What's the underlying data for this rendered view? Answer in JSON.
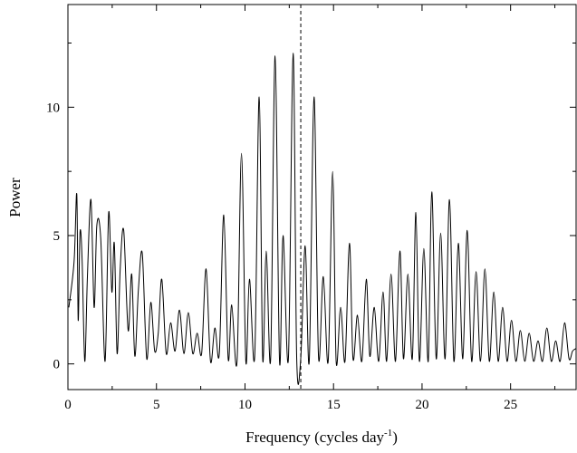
{
  "chart_data": {
    "type": "line",
    "xlabel": "Frequency (cycles day",
    "xlabel_superscript": "-1",
    "xlabel_suffix": ")",
    "ylabel": "Power",
    "xlim": [
      0,
      28.7
    ],
    "ylim": [
      -1.0,
      14.0
    ],
    "xticks": [
      0,
      5,
      10,
      15,
      20,
      25
    ],
    "yticks": [
      0,
      5,
      10
    ],
    "marker_line_x": 13.15,
    "series": [
      {
        "x": [
          0.05,
          0.35,
          0.5,
          0.58,
          0.68,
          0.8,
          0.95,
          1.1,
          1.3,
          1.48,
          1.63,
          1.85,
          2.1,
          2.3,
          2.48,
          2.62,
          2.78,
          2.95,
          3.15,
          3.4,
          3.6,
          3.78,
          3.98,
          4.2,
          4.45,
          4.68,
          4.9,
          5.1,
          5.3,
          5.55,
          5.8,
          6.05,
          6.3,
          6.55,
          6.8,
          7.05,
          7.3,
          7.55,
          7.8,
          8.05,
          8.3,
          8.55,
          8.8,
          9.05,
          9.25,
          9.55,
          9.8,
          10.05,
          10.25,
          10.55,
          10.8,
          11.0,
          11.2,
          11.45,
          11.7,
          11.95,
          12.15,
          12.45,
          12.72,
          12.92,
          13.15,
          13.4,
          13.63,
          13.9,
          14.15,
          14.42,
          14.7,
          14.95,
          15.15,
          15.4,
          15.65,
          15.9,
          16.1,
          16.35,
          16.6,
          16.85,
          17.05,
          17.3,
          17.55,
          17.8,
          18.0,
          18.25,
          18.5,
          18.75,
          18.95,
          19.2,
          19.45,
          19.65,
          19.85,
          20.1,
          20.35,
          20.55,
          20.8,
          21.05,
          21.3,
          21.55,
          21.8,
          22.05,
          22.3,
          22.55,
          22.8,
          23.05,
          23.3,
          23.55,
          23.8,
          24.05,
          24.3,
          24.55,
          24.8,
          25.05,
          25.3,
          25.55,
          25.8,
          26.05,
          26.3,
          26.55,
          26.8,
          27.05,
          27.3,
          27.55,
          27.8,
          28.05,
          28.3,
          28.5,
          28.7
        ],
        "y": [
          2.2,
          4.0,
          6.6,
          1.7,
          5.1,
          4.1,
          0.1,
          3.4,
          6.4,
          2.2,
          5.4,
          4.9,
          0.1,
          5.9,
          2.8,
          4.7,
          0.4,
          3.7,
          5.2,
          1.3,
          3.5,
          0.3,
          2.9,
          4.3,
          0.2,
          2.4,
          0.5,
          1.2,
          3.3,
          0.4,
          1.6,
          0.5,
          2.1,
          0.4,
          2.0,
          0.4,
          1.2,
          0.4,
          3.7,
          0.1,
          1.4,
          0.4,
          5.8,
          0.2,
          2.3,
          0.1,
          8.2,
          0.1,
          3.3,
          0.3,
          10.4,
          0.2,
          4.4,
          0.2,
          12.0,
          0.1,
          5.0,
          0.2,
          12.1,
          0.3,
          0.2,
          4.6,
          0.1,
          10.4,
          0.3,
          3.4,
          0.1,
          7.5,
          0.1,
          2.2,
          0.1,
          4.7,
          0.2,
          1.9,
          0.1,
          3.3,
          0.3,
          2.2,
          0.1,
          2.8,
          0.1,
          3.5,
          0.1,
          4.4,
          0.2,
          3.5,
          0.2,
          5.9,
          0.1,
          4.5,
          0.1,
          6.7,
          0.2,
          5.1,
          0.2,
          6.4,
          0.1,
          4.7,
          0.2,
          5.2,
          0.1,
          3.6,
          0.1,
          3.7,
          0.1,
          2.8,
          0.1,
          2.2,
          0.1,
          1.7,
          0.1,
          1.3,
          0.1,
          1.2,
          0.1,
          0.9,
          0.1,
          1.4,
          0.1,
          0.9,
          0.1,
          1.6,
          0.2,
          0.5,
          0.6
        ]
      }
    ]
  }
}
